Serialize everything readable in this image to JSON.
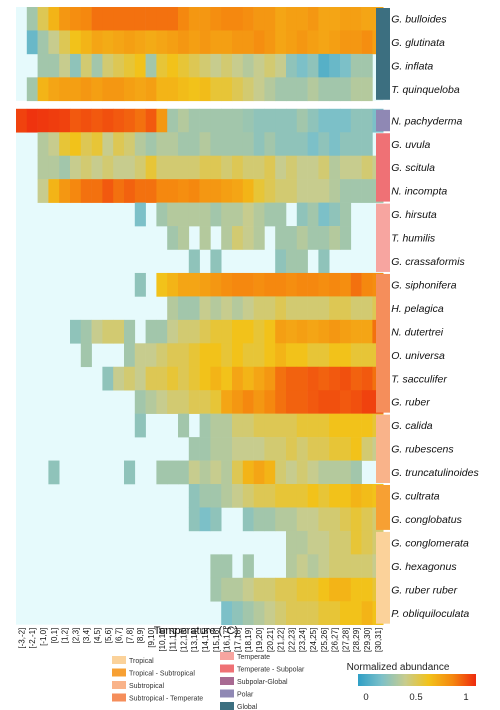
{
  "chart_data": {
    "type": "heatmap",
    "xlabel": "Temperature (°C)",
    "x_categories": [
      "[-3,-2]",
      "[-2,-1]",
      "[-1,0]",
      "[0,1]",
      "[1,2]",
      "[2,3]",
      "[3,4]",
      "[4,5]",
      "[5,6]",
      "[6,7]",
      "[7,8]",
      "[8,9]",
      "[9,10]",
      "[10,11]",
      "[11,12]",
      "[12,13]",
      "[13,14]",
      "[14,15]",
      "[15,16]",
      "[16,17]",
      "[17,18]",
      "[18,19]",
      "[19,20]",
      "[20,21]",
      "[21,22]",
      "[22,23]",
      "[23,24]",
      "[24,25]",
      "[25,26]",
      "[26,27]",
      "[27,28]",
      "[28,29]",
      "[29,30]",
      "[30,31]"
    ],
    "colorbar": {
      "title": "Normalized abundance",
      "min": 0,
      "max": 1,
      "ticks": [
        "0",
        "0.5",
        "1"
      ],
      "colors": [
        "#2f9fc6",
        "#7cc0c8",
        "#c7cc8e",
        "#f2c21a",
        "#f5880f",
        "#ee2a0e"
      ]
    },
    "legend": [
      {
        "label": "Tropical",
        "color": "#fbd29a"
      },
      {
        "label": "Tropical - Subtropical",
        "color": "#f7a033"
      },
      {
        "label": "Subtropical",
        "color": "#f9b38a"
      },
      {
        "label": "Subtropical - Temperate",
        "color": "#f58e5b"
      },
      {
        "label": "Temperate",
        "color": "#f7a5a0"
      },
      {
        "label": "Temperate - Subpolar",
        "color": "#ef7175"
      },
      {
        "label": "Subpolar-Global",
        "color": "#a86a92"
      },
      {
        "label": "Polar",
        "color": "#8f88b4"
      },
      {
        "label": "Global",
        "color": "#3c6f80"
      }
    ],
    "species": [
      {
        "name": "G. bulloides",
        "group": "Global",
        "values": [
          0,
          0.3,
          0.5,
          0.65,
          0.75,
          0.78,
          0.8,
          0.85,
          0.85,
          0.85,
          0.85,
          0.85,
          0.85,
          0.85,
          0.85,
          0.8,
          0.75,
          0.75,
          0.78,
          0.8,
          0.8,
          0.78,
          0.75,
          0.75,
          0.7,
          0.72,
          0.72,
          0.75,
          0.7,
          0.7,
          0.72,
          0.72,
          0.7,
          0.7
        ]
      },
      {
        "name": "G. glutinata",
        "group": "Global",
        "values": [
          0,
          0.15,
          0.3,
          0.4,
          0.5,
          0.6,
          0.65,
          0.7,
          0.68,
          0.7,
          0.72,
          0.7,
          0.68,
          0.7,
          0.72,
          0.75,
          0.72,
          0.75,
          0.72,
          0.72,
          0.75,
          0.75,
          0.78,
          0.75,
          0.7,
          0.72,
          0.75,
          0.72,
          0.7,
          0.72,
          0.75,
          0.75,
          0.78,
          0.72
        ]
      },
      {
        "name": "G. inflata",
        "group": "Global",
        "values": [
          0,
          0,
          0.3,
          0.3,
          0.4,
          0.25,
          0.45,
          0.3,
          0.45,
          0.5,
          0.55,
          0.6,
          0.3,
          0.55,
          0.6,
          0.55,
          0.5,
          0.45,
          0.4,
          0.45,
          0.4,
          0.35,
          0.4,
          0.45,
          0.4,
          0.25,
          0.2,
          0.25,
          0.1,
          0.15,
          0.2,
          0.3,
          0.3,
          0
        ]
      },
      {
        "name": "T. quinqueloba",
        "group": "Global",
        "values": [
          0,
          0.3,
          0.65,
          0.7,
          0.72,
          0.72,
          0.75,
          0.72,
          0.75,
          0.75,
          0.72,
          0.7,
          0.72,
          0.65,
          0.65,
          0.62,
          0.6,
          0.62,
          0.55,
          0.55,
          0.5,
          0.45,
          0.4,
          0.35,
          0.3,
          0.3,
          0.3,
          0.35,
          0.3,
          0.3,
          0.3,
          0.35,
          0.35,
          0
        ]
      },
      {
        "name": "N. pachyderma",
        "group": "Polar",
        "values": [
          0.95,
          0.98,
          0.97,
          0.96,
          0.95,
          0.9,
          0.92,
          0.9,
          0.92,
          0.9,
          0.88,
          0.85,
          0.9,
          0.75,
          0.3,
          0.35,
          0.3,
          0.3,
          0.3,
          0.3,
          0.3,
          0.28,
          0.25,
          0.25,
          0.25,
          0.25,
          0.3,
          0.25,
          0.2,
          0.2,
          0.2,
          0.25,
          0.25,
          0.2
        ]
      },
      {
        "name": "G. uvula",
        "group": "Temperate - Subpolar",
        "values": [
          0,
          0,
          0.35,
          0.4,
          0.55,
          0.6,
          0.5,
          0.55,
          0.4,
          0.5,
          0.45,
          0.35,
          0.3,
          0.35,
          0.35,
          0.3,
          0.3,
          0.35,
          0.3,
          0.3,
          0.3,
          0.3,
          0.25,
          0.3,
          0.25,
          0.25,
          0.25,
          0.2,
          0.25,
          0.2,
          0.25,
          0.25,
          0.25,
          0
        ]
      },
      {
        "name": "G. scitula",
        "group": "Temperate - Subpolar",
        "values": [
          0,
          0,
          0.35,
          0.35,
          0.3,
          0.4,
          0.45,
          0.4,
          0.45,
          0.4,
          0.4,
          0.45,
          0.55,
          0.45,
          0.45,
          0.45,
          0.45,
          0.5,
          0.5,
          0.45,
          0.5,
          0.45,
          0.45,
          0.5,
          0.4,
          0.45,
          0.4,
          0.4,
          0.45,
          0.35,
          0.4,
          0.4,
          0.45,
          0.4
        ]
      },
      {
        "name": "N. incompta",
        "group": "Temperate - Subpolar",
        "values": [
          0,
          0,
          0.4,
          0.65,
          0.75,
          0.8,
          0.85,
          0.85,
          0.9,
          0.85,
          0.88,
          0.85,
          0.85,
          0.8,
          0.8,
          0.78,
          0.8,
          0.75,
          0.75,
          0.72,
          0.7,
          0.65,
          0.55,
          0.5,
          0.45,
          0.45,
          0.4,
          0.4,
          0.4,
          0.35,
          0.3,
          0.3,
          0.3,
          0.3
        ]
      },
      {
        "name": "G. hirsuta",
        "group": "Temperate",
        "values": [
          0,
          0,
          0,
          0,
          0,
          0,
          0,
          0,
          0,
          0,
          0,
          0.2,
          0,
          0.3,
          0.35,
          0.35,
          0.35,
          0.35,
          0.3,
          0.35,
          0.35,
          0.4,
          0.35,
          0.3,
          0.3,
          0,
          0.25,
          0.3,
          0.2,
          0.25,
          0.3,
          0,
          0,
          0
        ]
      },
      {
        "name": "T. humilis",
        "group": "Temperate",
        "values": [
          0,
          0,
          0,
          0,
          0,
          0,
          0,
          0,
          0,
          0,
          0,
          0,
          0,
          0,
          0.3,
          0.35,
          0,
          0.35,
          0,
          0.35,
          0.45,
          0.4,
          0.35,
          0,
          0.3,
          0.3,
          0.35,
          0.3,
          0.3,
          0.35,
          0.3,
          0,
          0,
          0
        ]
      },
      {
        "name": "G. crassaformis",
        "group": "Temperate",
        "values": [
          0,
          0,
          0,
          0,
          0,
          0,
          0,
          0,
          0,
          0,
          0,
          0,
          0,
          0,
          0,
          0,
          0.25,
          0,
          0.25,
          0,
          0,
          0,
          0,
          0,
          0.25,
          0.3,
          0.3,
          0,
          0.25,
          0,
          0,
          0,
          0,
          0
        ]
      },
      {
        "name": "G. siphonifera",
        "group": "Subtropical - Temperate",
        "values": [
          0,
          0,
          0,
          0,
          0,
          0,
          0,
          0,
          0,
          0,
          0,
          0.25,
          0,
          0.6,
          0.65,
          0.7,
          0.7,
          0.72,
          0.75,
          0.78,
          0.8,
          0.8,
          0.78,
          0.8,
          0.8,
          0.78,
          0.8,
          0.8,
          0.78,
          0.8,
          0.78,
          0.85,
          0.8,
          0.78
        ]
      },
      {
        "name": "H. pelagica",
        "group": "Subtropical - Temperate",
        "values": [
          0,
          0,
          0,
          0,
          0,
          0,
          0,
          0,
          0,
          0,
          0,
          0,
          0,
          0,
          0.35,
          0.3,
          0.3,
          0.4,
          0.35,
          0.4,
          0.35,
          0.4,
          0.45,
          0.45,
          0.5,
          0.45,
          0.45,
          0.45,
          0.45,
          0.5,
          0.5,
          0.45,
          0.45,
          0.5
        ]
      },
      {
        "name": "N. dutertrei",
        "group": "Subtropical - Temperate",
        "values": [
          0,
          0,
          0,
          0,
          0,
          0.25,
          0.3,
          0.4,
          0.45,
          0.45,
          0.3,
          0,
          0.3,
          0.3,
          0.4,
          0.45,
          0.45,
          0.5,
          0.55,
          0.55,
          0.6,
          0.6,
          0.55,
          0.6,
          0.72,
          0.7,
          0.72,
          0.7,
          0.72,
          0.75,
          0.72,
          0.7,
          0.7,
          0.85
        ]
      },
      {
        "name": "O. universa",
        "group": "Subtropical - Temperate",
        "values": [
          0,
          0,
          0,
          0,
          0,
          0,
          0.3,
          0,
          0,
          0,
          0.3,
          0.4,
          0.4,
          0.45,
          0.5,
          0.5,
          0.55,
          0.6,
          0.6,
          0.55,
          0.6,
          0.55,
          0.55,
          0.6,
          0.65,
          0.6,
          0.6,
          0.55,
          0.55,
          0.6,
          0.6,
          0.55,
          0.55,
          0.55
        ]
      },
      {
        "name": "T. sacculifer",
        "group": "Subtropical - Temperate",
        "values": [
          0,
          0,
          0,
          0,
          0,
          0,
          0,
          0,
          0.25,
          0.4,
          0.45,
          0.4,
          0.5,
          0.5,
          0.55,
          0.5,
          0.55,
          0.6,
          0.65,
          0.6,
          0.7,
          0.65,
          0.7,
          0.75,
          0.85,
          0.88,
          0.88,
          0.9,
          0.88,
          0.9,
          0.92,
          0.88,
          0.9,
          0.85
        ]
      },
      {
        "name": "G. ruber",
        "group": "Subtropical - Temperate",
        "values": [
          0,
          0,
          0,
          0,
          0,
          0,
          0,
          0,
          0,
          0,
          0,
          0.3,
          0.35,
          0.4,
          0.45,
          0.45,
          0.5,
          0.5,
          0.55,
          0.7,
          0.75,
          0.8,
          0.75,
          0.8,
          0.85,
          0.88,
          0.88,
          0.9,
          0.92,
          0.92,
          0.9,
          0.92,
          0.95,
          0.95
        ]
      },
      {
        "name": "G. calida",
        "group": "Subtropical",
        "values": [
          0,
          0,
          0,
          0,
          0,
          0,
          0,
          0,
          0,
          0,
          0,
          0.25,
          0,
          0,
          0,
          0.3,
          0,
          0.3,
          0.35,
          0.35,
          0.45,
          0.45,
          0.5,
          0.5,
          0.5,
          0.5,
          0.55,
          0.55,
          0.55,
          0.6,
          0.6,
          0.6,
          0.6,
          0.55
        ]
      },
      {
        "name": "G. rubescens",
        "group": "Subtropical",
        "values": [
          0,
          0,
          0,
          0,
          0,
          0,
          0,
          0,
          0,
          0,
          0,
          0,
          0,
          0,
          0,
          0,
          0.3,
          0.3,
          0.35,
          0.35,
          0.4,
          0.4,
          0.4,
          0.45,
          0.45,
          0.5,
          0.45,
          0.5,
          0.5,
          0.55,
          0.55,
          0.6,
          0.45,
          0.4
        ]
      },
      {
        "name": "G. truncatulinoides",
        "group": "Subtropical",
        "values": [
          0,
          0,
          0,
          0.25,
          0,
          0,
          0,
          0,
          0,
          0,
          0.25,
          0,
          0,
          0.3,
          0.3,
          0.3,
          0.4,
          0.35,
          0.4,
          0.35,
          0.5,
          0.65,
          0.7,
          0.65,
          0.45,
          0.4,
          0.45,
          0.4,
          0.35,
          0.35,
          0.35,
          0.3,
          0,
          0
        ]
      },
      {
        "name": "G. cultrata",
        "group": "Tropical - Subtropical",
        "values": [
          0,
          0,
          0,
          0,
          0,
          0,
          0,
          0,
          0,
          0,
          0,
          0,
          0,
          0,
          0,
          0,
          0.25,
          0.3,
          0.3,
          0.35,
          0.4,
          0.45,
          0.5,
          0.5,
          0.55,
          0.55,
          0.55,
          0.6,
          0.55,
          0.6,
          0.6,
          0.65,
          0.62,
          0.6
        ]
      },
      {
        "name": "G. conglobatus",
        "group": "Tropical - Subtropical",
        "values": [
          0,
          0,
          0,
          0,
          0,
          0,
          0,
          0,
          0,
          0,
          0,
          0,
          0,
          0,
          0,
          0,
          0.25,
          0.2,
          0.25,
          0,
          0,
          0.25,
          0.3,
          0.3,
          0.35,
          0.35,
          0.4,
          0.4,
          0.45,
          0.45,
          0.5,
          0.55,
          0.5,
          0.45
        ]
      },
      {
        "name": "G. conglomerata",
        "group": "Tropical",
        "values": [
          0,
          0,
          0,
          0,
          0,
          0,
          0,
          0,
          0,
          0,
          0,
          0,
          0,
          0,
          0,
          0,
          0,
          0,
          0,
          0,
          0,
          0,
          0,
          0,
          0,
          0.35,
          0.35,
          0.4,
          0.4,
          0.45,
          0.45,
          0.55,
          0.5,
          0.45
        ]
      },
      {
        "name": "G. hexagonus",
        "group": "Tropical",
        "values": [
          0,
          0,
          0,
          0,
          0,
          0,
          0,
          0,
          0,
          0,
          0,
          0,
          0,
          0,
          0,
          0,
          0,
          0,
          0.3,
          0.3,
          0,
          0.3,
          0,
          0,
          0,
          0.35,
          0.4,
          0.35,
          0.4,
          0.45,
          0.45,
          0.45,
          0.45,
          0.4
        ]
      },
      {
        "name": "G. ruber ruber",
        "group": "Tropical",
        "values": [
          0,
          0,
          0,
          0,
          0,
          0,
          0,
          0,
          0,
          0,
          0,
          0,
          0,
          0,
          0,
          0,
          0,
          0,
          0.3,
          0.35,
          0.35,
          0.4,
          0.45,
          0.45,
          0.5,
          0.5,
          0.55,
          0.55,
          0.6,
          0.65,
          0.65,
          0.6,
          0.6,
          0.55
        ]
      },
      {
        "name": "P. obliquiloculata",
        "group": "Tropical",
        "values": [
          0,
          0,
          0,
          0,
          0,
          0,
          0,
          0,
          0,
          0,
          0,
          0,
          0,
          0,
          0,
          0,
          0,
          0,
          0,
          0.2,
          0.25,
          0.3,
          0.35,
          0.4,
          0.45,
          0.5,
          0.5,
          0.5,
          0.55,
          0.55,
          0.6,
          0.6,
          0.65,
          0.6
        ]
      }
    ]
  }
}
